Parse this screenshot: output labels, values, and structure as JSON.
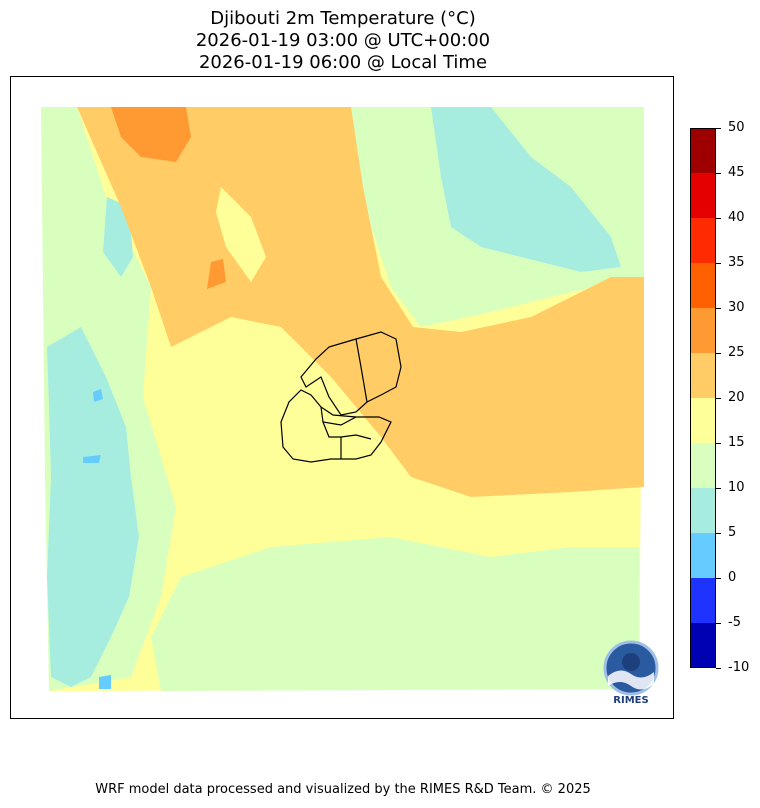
{
  "title": {
    "line1": "Djibouti 2m Temperature (°C)",
    "line2": "2026-01-19 03:00 @ UTC+00:00",
    "line3": "2026-01-19 06:00 @ Local Time"
  },
  "colorbar": {
    "ticks": [
      "50",
      "45",
      "40",
      "35",
      "30",
      "25",
      "20",
      "15",
      "10",
      "5",
      "0",
      "-5",
      "-10"
    ],
    "colors_top_to_bottom": [
      "#9e0000",
      "#e50000",
      "#ff2b00",
      "#ff6000",
      "#ff9a33",
      "#ffcc66",
      "#ffff99",
      "#d9ffbf",
      "#a6ede0",
      "#66ccff",
      "#1f33ff",
      "#0000b3"
    ]
  },
  "logo": {
    "text": "RIMES",
    "name": "rimes-logo"
  },
  "credit": "WRF model data processed and visualized by the RIMES R&D Team. © 2025"
}
